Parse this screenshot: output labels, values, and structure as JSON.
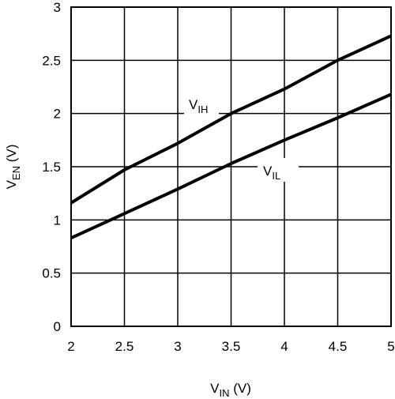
{
  "chart_data": {
    "type": "line",
    "xlabel": {
      "main": "V",
      "sub": "IN",
      "unit": " (V)"
    },
    "ylabel": {
      "main": "V",
      "sub": "EN",
      "unit": " (V)"
    },
    "xlim": [
      2,
      5
    ],
    "ylim": [
      0,
      3
    ],
    "x_ticks": [
      2,
      2.5,
      3,
      3.5,
      4,
      4.5,
      5
    ],
    "y_ticks": [
      0,
      0.5,
      1,
      1.5,
      2,
      2.5,
      3
    ],
    "x_tick_labels": [
      "2",
      "2.5",
      "3",
      "3.5",
      "4",
      "4.5",
      "5"
    ],
    "y_tick_labels": [
      "0",
      "0.5",
      "1",
      "1.5",
      "2",
      "2.5",
      "3"
    ],
    "grid": true,
    "series": [
      {
        "name": "VIH",
        "label_main": "V",
        "label_sub": "IH",
        "x": [
          2.0,
          2.5,
          3.0,
          3.5,
          4.0,
          4.5,
          5.0
        ],
        "y": [
          1.16,
          1.47,
          1.72,
          2.0,
          2.23,
          2.5,
          2.73
        ]
      },
      {
        "name": "VIL",
        "label_main": "V",
        "label_sub": "IL",
        "x": [
          2.0,
          2.5,
          3.0,
          3.5,
          4.0,
          4.5,
          5.0
        ],
        "y": [
          0.83,
          1.06,
          1.29,
          1.53,
          1.75,
          1.96,
          2.18
        ]
      }
    ]
  }
}
